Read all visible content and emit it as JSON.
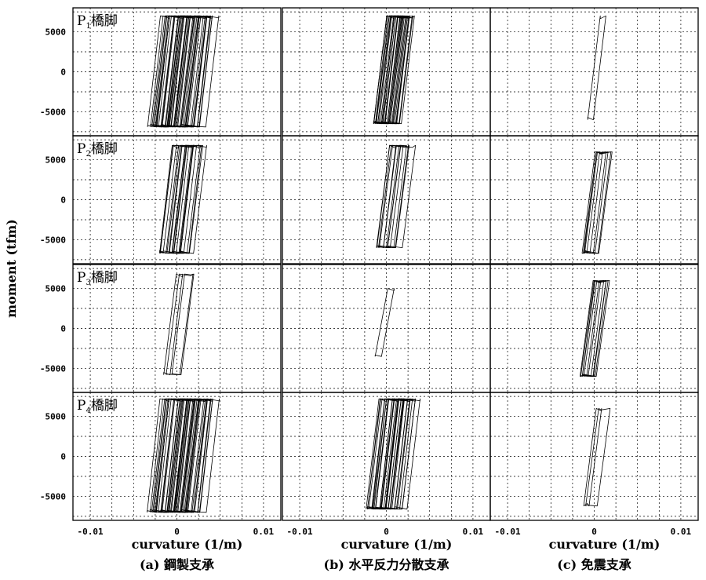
{
  "figure": {
    "y_axis_label": "moment (tfm)",
    "x_axis_label": "curvature (1/m)"
  },
  "chart_data": {
    "type": "line",
    "grid": true,
    "ylim": [
      -8000,
      8000
    ],
    "xlim": [
      -0.012,
      0.012
    ],
    "yticks": [
      5000,
      0,
      -5000
    ],
    "ytick_labels": [
      "5000",
      "0",
      "-5000"
    ],
    "xticks": [
      -0.01,
      0,
      0.01
    ],
    "xtick_labels": [
      "-0.01",
      "0",
      "0.01"
    ],
    "columns": [
      {
        "caption": "(a) 鋼製支承"
      },
      {
        "caption": "(b) 水平反力分散支承"
      },
      {
        "caption": "(c) 免震支承"
      }
    ],
    "rows": [
      {
        "pier_prefix": "P",
        "pier_sub": "1",
        "pier_suffix": "橋脚"
      },
      {
        "pier_prefix": "P",
        "pier_sub": "2",
        "pier_suffix": "橋脚"
      },
      {
        "pier_prefix": "P",
        "pier_sub": "3",
        "pier_suffix": "橋脚"
      },
      {
        "pier_prefix": "P",
        "pier_sub": "4",
        "pier_suffix": "橋脚"
      }
    ],
    "panels": [
      [
        {
          "x_range": [
            -0.0065,
            0.0075
          ],
          "center_x": 0.0005,
          "m_max": 7000,
          "m_min": -6900,
          "cycles": 26
        },
        {
          "x_range": [
            -0.002,
            0.003
          ],
          "center_x": 0.0007,
          "m_max": 7000,
          "m_min": -6500,
          "cycles": 18
        },
        {
          "x_range": [
            -0.001,
            0.0007
          ],
          "center_x": 0.0003,
          "m_max": 7000,
          "m_min": -6000,
          "cycles": 1
        }
      ],
      [
        {
          "x_range": [
            -0.004,
            0.004
          ],
          "center_x": 0.0005,
          "m_max": 6800,
          "m_min": -6700,
          "cycles": 11
        },
        {
          "x_range": [
            -0.0015,
            0.003
          ],
          "center_x": 0.0008,
          "m_max": 6800,
          "m_min": -6000,
          "cycles": 7
        },
        {
          "x_range": [
            -0.001,
            0.0008
          ],
          "center_x": 0.0002,
          "m_max": 6000,
          "m_min": -6700,
          "cycles": 5
        }
      ],
      [
        {
          "x_range": [
            -0.002,
            0.0016
          ],
          "center_x": 0.0002,
          "m_max": 6800,
          "m_min": -5800,
          "cycles": 3
        },
        {
          "x_range": [
            -0.0015,
            0.001
          ],
          "center_x": -0.0002,
          "m_max": 5000,
          "m_min": -3500,
          "cycles": 1
        },
        {
          "x_range": [
            -0.0012,
            0.0006
          ],
          "center_x": 0.0,
          "m_max": 6000,
          "m_min": -6000,
          "cycles": 6
        }
      ],
      [
        {
          "x_range": [
            -0.0065,
            0.0078
          ],
          "center_x": 0.0005,
          "m_max": 7200,
          "m_min": -7000,
          "cycles": 26
        },
        {
          "x_range": [
            -0.0045,
            0.0045
          ],
          "center_x": 0.0005,
          "m_max": 7200,
          "m_min": -6600,
          "cycles": 18
        },
        {
          "x_range": [
            -0.0008,
            0.0008
          ],
          "center_x": 0.0001,
          "m_max": 6000,
          "m_min": -6200,
          "cycles": 2
        }
      ]
    ]
  }
}
